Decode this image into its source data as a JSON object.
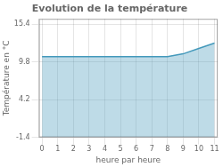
{
  "chart_data": {
    "type": "area",
    "title": "Evolution de la température",
    "xlabel": "heure par heure",
    "ylabel": "Température en °C",
    "x": [
      0,
      1,
      2,
      3,
      4,
      5,
      6,
      7,
      8,
      9,
      10,
      11
    ],
    "values": [
      10.6,
      10.6,
      10.6,
      10.6,
      10.6,
      10.6,
      10.6,
      10.6,
      10.6,
      11.0,
      11.8,
      12.6
    ],
    "color": "#4499bb",
    "xlim": [
      -0.2,
      11.2
    ],
    "xticks": [
      0,
      1,
      2,
      3,
      4,
      5,
      6,
      7,
      8,
      9,
      10,
      11
    ],
    "ylim": [
      -1.4,
      16.2
    ],
    "yticks": [
      -1.4,
      4.2,
      9.8,
      15.4
    ],
    "grid": true
  }
}
